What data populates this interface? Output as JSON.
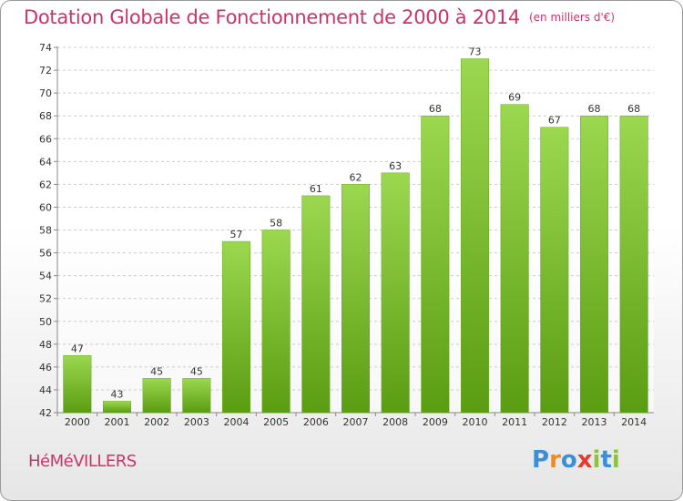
{
  "header": {
    "title": "Dotation Globale de Fonctionnement de 2000 à 2014",
    "unit": "(en milliers d'€)"
  },
  "footer": {
    "commune": "HéMéVILLERS",
    "logo_text": "Proxiti"
  },
  "colors": {
    "title": "#cc3366",
    "bar_top": "#9bd850",
    "bar_bottom": "#5a9c12",
    "grid": "#cccccc",
    "logo_letters": [
      "#3b8fd6",
      "#f28b1c",
      "#3b8fd6",
      "#e23c2c",
      "#8cc43c",
      "#3b8fd6",
      "#8cc43c"
    ]
  },
  "chart_data": {
    "type": "bar",
    "title": "Dotation Globale de Fonctionnement de 2000 à 2014",
    "subtitle": "(en milliers d'€)",
    "xlabel": "",
    "ylabel": "",
    "categories": [
      "2000",
      "2001",
      "2002",
      "2003",
      "2004",
      "2005",
      "2006",
      "2007",
      "2008",
      "2009",
      "2010",
      "2011",
      "2012",
      "2013",
      "2014"
    ],
    "values": [
      47,
      43,
      45,
      45,
      57,
      58,
      61,
      62,
      63,
      68,
      73,
      69,
      67,
      68,
      68
    ],
    "ylim": [
      42,
      74
    ],
    "yticks": [
      42,
      44,
      46,
      48,
      50,
      52,
      54,
      56,
      58,
      60,
      62,
      64,
      66,
      68,
      70,
      72,
      74
    ],
    "grid": true,
    "legend": "none"
  }
}
